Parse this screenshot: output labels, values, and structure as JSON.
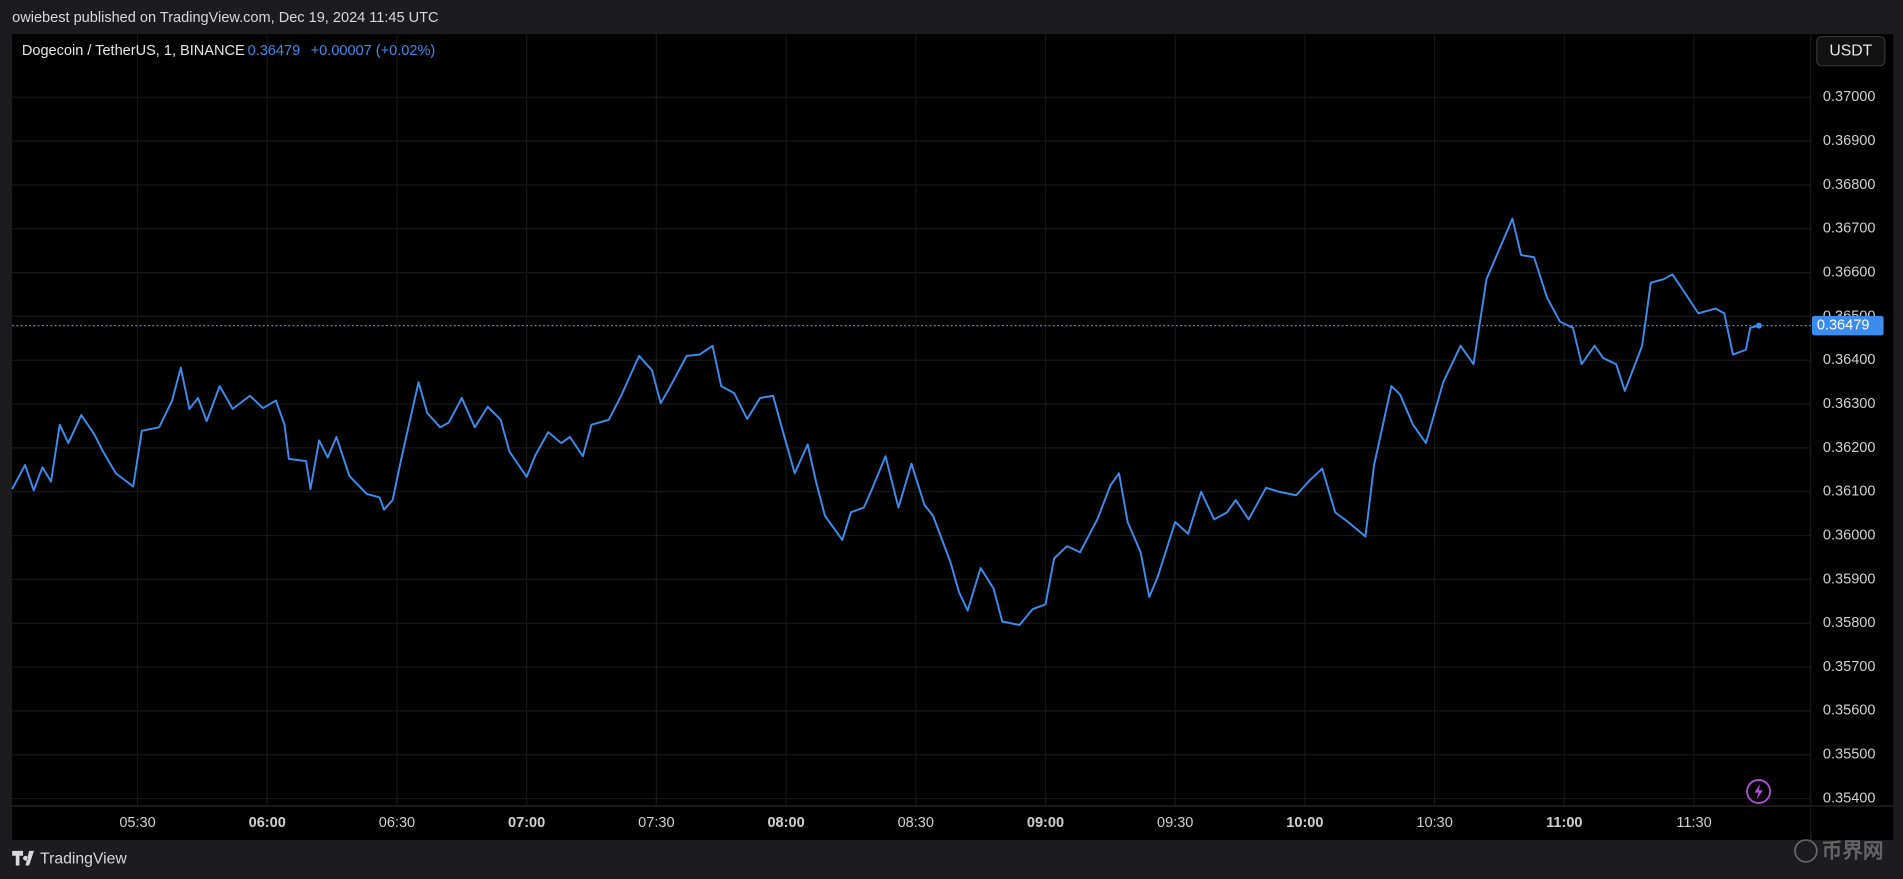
{
  "header": {
    "published": "owiebest published on TradingView.com, Dec 19, 2024 11:45 UTC",
    "currency_button": "USDT",
    "change_label": "+0.00007 (+0.02%)"
  },
  "footer": {
    "brand": "TradingView",
    "watermark": "币界网"
  },
  "chart_data": {
    "type": "line",
    "last_price": 0.36479,
    "x": [
      "05:01",
      "05:04",
      "05:06",
      "05:08",
      "05:10",
      "05:12",
      "05:14",
      "05:17",
      "05:20",
      "05:22",
      "05:25",
      "05:29",
      "05:31",
      "05:35",
      "05:38",
      "05:40",
      "05:42",
      "05:44",
      "05:46",
      "05:49",
      "05:52",
      "05:56",
      "05:59",
      "06:02",
      "06:04",
      "06:05",
      "06:09",
      "06:10",
      "06:12",
      "06:14",
      "06:16",
      "06:19",
      "06:23",
      "06:26",
      "06:27",
      "06:29",
      "06:31",
      "06:35",
      "06:37",
      "06:40",
      "06:42",
      "06:45",
      "06:48",
      "06:51",
      "06:54",
      "06:56",
      "07:00",
      "07:02",
      "07:05",
      "07:08",
      "07:10",
      "07:13",
      "07:15",
      "07:19",
      "07:22",
      "07:26",
      "07:29",
      "07:31",
      "07:33",
      "07:37",
      "07:40",
      "07:43",
      "07:45",
      "07:48",
      "07:51",
      "07:54",
      "07:57",
      "07:59",
      "08:02",
      "08:05",
      "08:07",
      "08:09",
      "08:13",
      "08:15",
      "08:18",
      "08:20",
      "08:23",
      "08:26",
      "08:29",
      "08:32",
      "08:34",
      "08:38",
      "08:40",
      "08:42",
      "08:45",
      "08:48",
      "08:50",
      "08:54",
      "08:57",
      "09:00",
      "09:02",
      "09:05",
      "09:08",
      "09:12",
      "09:15",
      "09:17",
      "09:19",
      "09:22",
      "09:24",
      "09:26",
      "09:30",
      "09:33",
      "09:36",
      "09:39",
      "09:42",
      "09:44",
      "09:47",
      "09:51",
      "09:54",
      "09:58",
      "10:01",
      "10:04",
      "10:07",
      "10:10",
      "10:14",
      "10:16",
      "10:20",
      "10:22",
      "10:25",
      "10:28",
      "10:32",
      "10:36",
      "10:39",
      "10:42",
      "10:45",
      "10:48",
      "10:50",
      "10:53",
      "10:56",
      "10:59",
      "11:02",
      "11:04",
      "11:07",
      "11:09",
      "11:12",
      "11:14",
      "11:18",
      "11:20",
      "11:23",
      "11:25",
      "11:28",
      "11:31",
      "11:35",
      "11:37",
      "11:39",
      "11:42",
      "11:43",
      "11:45"
    ],
    "series": [
      {
        "name": "Dogecoin / TetherUS, 1, BINANCE",
        "color": "#3b8ced",
        "values": [
          0.36106,
          0.36161,
          0.36103,
          0.36156,
          0.36123,
          0.36253,
          0.36211,
          0.36275,
          0.36231,
          0.36192,
          0.36142,
          0.36112,
          0.36239,
          0.36247,
          0.36308,
          0.36383,
          0.36289,
          0.36314,
          0.36261,
          0.36341,
          0.36289,
          0.36319,
          0.36291,
          0.36308,
          0.36253,
          0.36175,
          0.3617,
          0.36106,
          0.36217,
          0.36178,
          0.36225,
          0.36136,
          0.36095,
          0.36087,
          0.36059,
          0.36081,
          0.36175,
          0.3635,
          0.3628,
          0.36247,
          0.36258,
          0.36314,
          0.36247,
          0.36294,
          0.36264,
          0.36192,
          0.36134,
          0.36183,
          0.36236,
          0.36211,
          0.36225,
          0.36181,
          0.36253,
          0.36264,
          0.36322,
          0.3641,
          0.36377,
          0.36302,
          0.36336,
          0.3641,
          0.36413,
          0.36433,
          0.36341,
          0.36325,
          0.36266,
          0.36314,
          0.36319,
          0.36247,
          0.36142,
          0.36208,
          0.3612,
          0.36045,
          0.3599,
          0.36053,
          0.36064,
          0.36109,
          0.36181,
          0.36064,
          0.36164,
          0.3607,
          0.36045,
          0.3594,
          0.35871,
          0.35829,
          0.35926,
          0.35879,
          0.35804,
          0.35796,
          0.35832,
          0.35843,
          0.35948,
          0.35976,
          0.35962,
          0.36037,
          0.36114,
          0.36142,
          0.36031,
          0.35962,
          0.3586,
          0.35907,
          0.36031,
          0.36004,
          0.361,
          0.36037,
          0.36053,
          0.36081,
          0.36037,
          0.36109,
          0.361,
          0.36092,
          0.36125,
          0.36153,
          0.36053,
          0.36031,
          0.35998,
          0.36161,
          0.36341,
          0.36322,
          0.36253,
          0.36211,
          0.3635,
          0.36433,
          0.36391,
          0.36585,
          0.36654,
          0.36723,
          0.3664,
          0.36635,
          0.36543,
          0.36488,
          0.36474,
          0.36391,
          0.36433,
          0.36405,
          0.36391,
          0.3633,
          0.36433,
          0.36577,
          0.36585,
          0.36596,
          0.36552,
          0.36507,
          0.36518,
          0.36507,
          0.36413,
          0.36424,
          0.36474,
          0.36479
        ]
      }
    ],
    "xlim": [
      "05:01",
      "11:57"
    ],
    "xticks": [
      "05:30",
      "06:00",
      "06:30",
      "07:00",
      "07:30",
      "08:00",
      "08:30",
      "09:00",
      "09:30",
      "10:00",
      "10:30",
      "11:00",
      "11:30"
    ],
    "ylim": [
      0.35383,
      0.37144
    ],
    "yticks": [
      {
        "value": 0.354,
        "label": "0.35400"
      },
      {
        "value": 0.355,
        "label": "0.35500"
      },
      {
        "value": 0.356,
        "label": "0.35600"
      },
      {
        "value": 0.357,
        "label": "0.35700"
      },
      {
        "value": 0.358,
        "label": "0.35800"
      },
      {
        "value": 0.359,
        "label": "0.35900"
      },
      {
        "value": 0.36,
        "label": "0.36000"
      },
      {
        "value": 0.361,
        "label": "0.36100"
      },
      {
        "value": 0.362,
        "label": "0.36200"
      },
      {
        "value": 0.363,
        "label": "0.36300"
      },
      {
        "value": 0.364,
        "label": "0.36400"
      },
      {
        "value": 0.365,
        "label": "0.36500"
      },
      {
        "value": 0.366,
        "label": "0.36600"
      },
      {
        "value": 0.367,
        "label": "0.36700"
      },
      {
        "value": 0.368,
        "label": "0.36800"
      },
      {
        "value": 0.369,
        "label": "0.36900"
      },
      {
        "value": 0.37,
        "label": "0.37000"
      }
    ],
    "grid": true
  }
}
